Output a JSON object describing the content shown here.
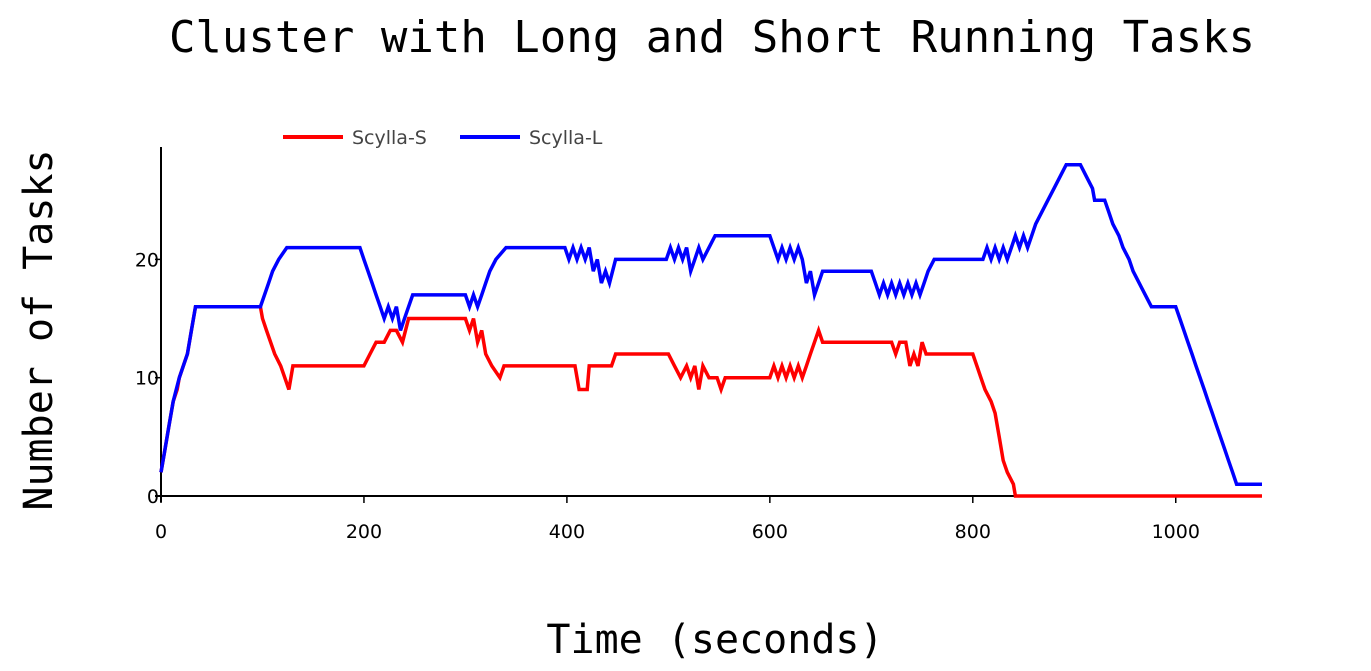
{
  "chart_data": {
    "type": "line",
    "title": "Cluster with Long and Short Running Tasks",
    "xlabel": "Time (seconds)",
    "ylabel": "Number of Tasks",
    "xlim": [
      0,
      1085
    ],
    "ylim": [
      0,
      29.5
    ],
    "x_ticks": [
      0,
      200,
      400,
      600,
      800,
      1000
    ],
    "y_ticks": [
      0,
      10,
      20
    ],
    "grid": false,
    "legend_position": "top-left, horizontal",
    "series": [
      {
        "name": "Scylla-S",
        "color": "#ff0000",
        "points": [
          [
            0,
            2
          ],
          [
            4,
            4
          ],
          [
            8,
            6
          ],
          [
            12,
            8
          ],
          [
            16,
            9
          ],
          [
            18,
            10
          ],
          [
            22,
            11
          ],
          [
            26,
            12
          ],
          [
            30,
            14
          ],
          [
            34,
            16
          ],
          [
            98,
            16
          ],
          [
            100,
            15
          ],
          [
            104,
            14
          ],
          [
            108,
            13
          ],
          [
            112,
            12
          ],
          [
            118,
            11
          ],
          [
            122,
            10
          ],
          [
            126,
            9
          ],
          [
            130,
            11
          ],
          [
            200,
            11
          ],
          [
            206,
            12
          ],
          [
            212,
            13
          ],
          [
            220,
            13
          ],
          [
            226,
            14
          ],
          [
            232,
            14
          ],
          [
            238,
            13
          ],
          [
            244,
            15
          ],
          [
            300,
            15
          ],
          [
            304,
            14
          ],
          [
            308,
            15
          ],
          [
            312,
            13
          ],
          [
            316,
            14
          ],
          [
            320,
            12
          ],
          [
            326,
            11
          ],
          [
            334,
            10
          ],
          [
            338,
            11
          ],
          [
            408,
            11
          ],
          [
            412,
            9
          ],
          [
            420,
            9
          ],
          [
            422,
            11
          ],
          [
            444,
            11
          ],
          [
            448,
            12
          ],
          [
            500,
            12
          ],
          [
            506,
            11
          ],
          [
            512,
            10
          ],
          [
            518,
            11
          ],
          [
            522,
            10
          ],
          [
            526,
            11
          ],
          [
            530,
            9
          ],
          [
            534,
            11
          ],
          [
            540,
            10
          ],
          [
            548,
            10
          ],
          [
            552,
            9
          ],
          [
            556,
            10
          ],
          [
            600,
            10
          ],
          [
            604,
            11
          ],
          [
            608,
            10
          ],
          [
            612,
            11
          ],
          [
            616,
            10
          ],
          [
            620,
            11
          ],
          [
            624,
            10
          ],
          [
            628,
            11
          ],
          [
            632,
            10
          ],
          [
            636,
            11
          ],
          [
            640,
            12
          ],
          [
            644,
            13
          ],
          [
            648,
            14
          ],
          [
            652,
            13
          ],
          [
            720,
            13
          ],
          [
            724,
            12
          ],
          [
            728,
            13
          ],
          [
            734,
            13
          ],
          [
            738,
            11
          ],
          [
            742,
            12
          ],
          [
            746,
            11
          ],
          [
            750,
            13
          ],
          [
            754,
            12
          ],
          [
            800,
            12
          ],
          [
            804,
            11
          ],
          [
            808,
            10
          ],
          [
            812,
            9
          ],
          [
            818,
            8
          ],
          [
            822,
            7
          ],
          [
            826,
            5
          ],
          [
            830,
            3
          ],
          [
            834,
            2
          ],
          [
            840,
            1
          ],
          [
            842,
            0
          ],
          [
            1085,
            0
          ]
        ]
      },
      {
        "name": "Scylla-L",
        "color": "#0000ff",
        "points": [
          [
            0,
            2
          ],
          [
            4,
            4
          ],
          [
            8,
            6
          ],
          [
            12,
            8
          ],
          [
            18,
            10
          ],
          [
            22,
            11
          ],
          [
            26,
            12
          ],
          [
            30,
            14
          ],
          [
            34,
            16
          ],
          [
            98,
            16
          ],
          [
            102,
            17
          ],
          [
            106,
            18
          ],
          [
            110,
            19
          ],
          [
            116,
            20
          ],
          [
            124,
            21
          ],
          [
            196,
            21
          ],
          [
            200,
            20
          ],
          [
            204,
            19
          ],
          [
            208,
            18
          ],
          [
            212,
            17
          ],
          [
            216,
            16
          ],
          [
            220,
            15
          ],
          [
            224,
            16
          ],
          [
            228,
            15
          ],
          [
            232,
            16
          ],
          [
            236,
            14
          ],
          [
            240,
            15
          ],
          [
            244,
            16
          ],
          [
            248,
            17
          ],
          [
            300,
            17
          ],
          [
            304,
            16
          ],
          [
            308,
            17
          ],
          [
            312,
            16
          ],
          [
            316,
            17
          ],
          [
            320,
            18
          ],
          [
            324,
            19
          ],
          [
            330,
            20
          ],
          [
            340,
            21
          ],
          [
            398,
            21
          ],
          [
            402,
            20
          ],
          [
            406,
            21
          ],
          [
            410,
            20
          ],
          [
            414,
            21
          ],
          [
            418,
            20
          ],
          [
            422,
            21
          ],
          [
            426,
            19
          ],
          [
            430,
            20
          ],
          [
            434,
            18
          ],
          [
            438,
            19
          ],
          [
            442,
            18
          ],
          [
            448,
            20
          ],
          [
            498,
            20
          ],
          [
            502,
            21
          ],
          [
            506,
            20
          ],
          [
            510,
            21
          ],
          [
            514,
            20
          ],
          [
            518,
            21
          ],
          [
            522,
            19
          ],
          [
            526,
            20
          ],
          [
            530,
            21
          ],
          [
            534,
            20
          ],
          [
            540,
            21
          ],
          [
            546,
            22
          ],
          [
            600,
            22
          ],
          [
            604,
            21
          ],
          [
            608,
            20
          ],
          [
            612,
            21
          ],
          [
            616,
            20
          ],
          [
            620,
            21
          ],
          [
            624,
            20
          ],
          [
            628,
            21
          ],
          [
            632,
            20
          ],
          [
            636,
            18
          ],
          [
            640,
            19
          ],
          [
            644,
            17
          ],
          [
            648,
            18
          ],
          [
            652,
            19
          ],
          [
            700,
            19
          ],
          [
            704,
            18
          ],
          [
            708,
            17
          ],
          [
            712,
            18
          ],
          [
            716,
            17
          ],
          [
            720,
            18
          ],
          [
            724,
            17
          ],
          [
            728,
            18
          ],
          [
            732,
            17
          ],
          [
            736,
            18
          ],
          [
            740,
            17
          ],
          [
            744,
            18
          ],
          [
            748,
            17
          ],
          [
            752,
            18
          ],
          [
            756,
            19
          ],
          [
            762,
            20
          ],
          [
            810,
            20
          ],
          [
            814,
            21
          ],
          [
            818,
            20
          ],
          [
            822,
            21
          ],
          [
            826,
            20
          ],
          [
            830,
            21
          ],
          [
            834,
            20
          ],
          [
            838,
            21
          ],
          [
            842,
            22
          ],
          [
            846,
            21
          ],
          [
            850,
            22
          ],
          [
            854,
            21
          ],
          [
            858,
            22
          ],
          [
            862,
            23
          ],
          [
            868,
            24
          ],
          [
            874,
            25
          ],
          [
            880,
            26
          ],
          [
            886,
            27
          ],
          [
            892,
            28
          ],
          [
            906,
            28
          ],
          [
            912,
            27
          ],
          [
            918,
            26
          ],
          [
            920,
            25
          ],
          [
            930,
            25
          ],
          [
            934,
            24
          ],
          [
            938,
            23
          ],
          [
            944,
            22
          ],
          [
            948,
            21
          ],
          [
            954,
            20
          ],
          [
            958,
            19
          ],
          [
            964,
            18
          ],
          [
            970,
            17
          ],
          [
            976,
            16
          ],
          [
            1000,
            16
          ],
          [
            1004,
            15
          ],
          [
            1008,
            14
          ],
          [
            1012,
            13
          ],
          [
            1016,
            12
          ],
          [
            1020,
            11
          ],
          [
            1024,
            10
          ],
          [
            1028,
            9
          ],
          [
            1032,
            8
          ],
          [
            1036,
            7
          ],
          [
            1040,
            6
          ],
          [
            1044,
            5
          ],
          [
            1048,
            4
          ],
          [
            1052,
            3
          ],
          [
            1056,
            2
          ],
          [
            1060,
            1
          ],
          [
            1085,
            1
          ]
        ]
      }
    ]
  }
}
